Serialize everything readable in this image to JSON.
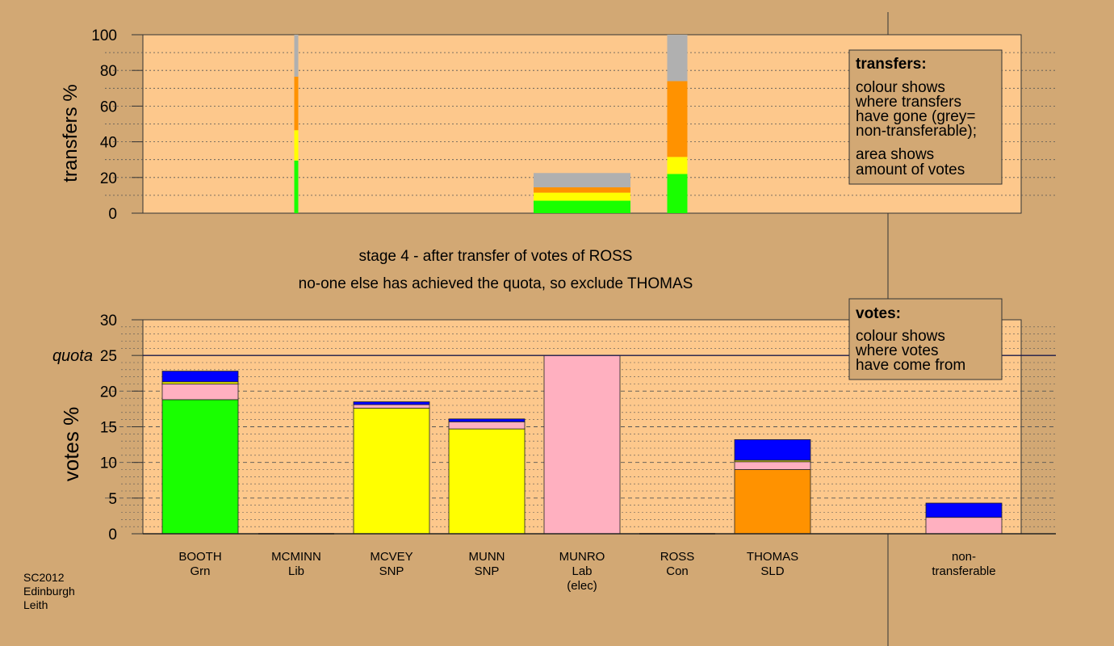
{
  "colors": {
    "background": "#d2a874",
    "plot_bg": "#fdc88c",
    "Grn": "#19ff00",
    "Lib": "#ffff00",
    "SNP": "#ffff00",
    "Lab": "#ffb0c0",
    "SLD": "#ff9200",
    "Con": "#0000ff",
    "nontransferable": "#b0b0b0"
  },
  "stage_text": "stage 4 - after transfer of votes of ROSS",
  "status_text": "no-one else has achieved the quota, so exclude THOMAS",
  "footer": [
    "SC2012",
    "Edinburgh",
    "Leith"
  ],
  "transfers_legend": {
    "title": "transfers:",
    "line1": [
      "colour shows",
      "where transfers",
      "have gone (grey=",
      "non-transferable);"
    ],
    "line2": [
      "area shows",
      "amount of votes"
    ]
  },
  "votes_legend": {
    "title": "votes:",
    "line1": [
      "colour shows",
      "where votes",
      "have come from"
    ]
  },
  "chart_data": [
    {
      "type": "bar",
      "title": "",
      "ylabel": "transfers %",
      "ylim": [
        0,
        100
      ],
      "yticks": [
        0,
        20,
        40,
        60,
        80,
        100
      ],
      "grid": true,
      "legend": "top-right",
      "categories": [
        "BOOTH Grn",
        "MCMINN Lib",
        "MCVEY SNP",
        "MUNN SNP",
        "MUNRO Lab (elec)",
        "ROSS Con",
        "THOMAS SLD"
      ],
      "bars": [
        {
          "category": "MCMINN Lib",
          "segments": [
            {
              "color_key": "Grn",
              "value": 29.5
            },
            {
              "color_key": "SNP",
              "value": 17
            },
            {
              "color_key": "SLD",
              "value": 30
            },
            {
              "color_key": "nontransferable",
              "value": 23.5
            }
          ]
        },
        {
          "category": "MUNRO Lab (elec)",
          "segments": [
            {
              "color_key": "Grn",
              "value": 7
            },
            {
              "color_key": "SNP",
              "value": 4.5
            },
            {
              "color_key": "SLD",
              "value": 3
            },
            {
              "color_key": "nontransferable",
              "value": 8
            }
          ]
        },
        {
          "category": "ROSS Con",
          "segments": [
            {
              "color_key": "Grn",
              "value": 22
            },
            {
              "color_key": "SNP",
              "value": 9.5
            },
            {
              "color_key": "SLD",
              "value": 42.5
            },
            {
              "color_key": "nontransferable",
              "value": 26
            }
          ]
        }
      ]
    },
    {
      "type": "bar",
      "title": "",
      "ylabel": "votes %",
      "ylim": [
        0,
        30
      ],
      "yticks": [
        0,
        5,
        10,
        15,
        20,
        25,
        30
      ],
      "quota": 25,
      "quota_label": "quota",
      "grid": true,
      "legend": "top-right",
      "categories": [
        {
          "name": "BOOTH",
          "party": "Grn",
          "note": ""
        },
        {
          "name": "MCMINN",
          "party": "Lib",
          "note": ""
        },
        {
          "name": "MCVEY",
          "party": "SNP",
          "note": ""
        },
        {
          "name": "MUNN",
          "party": "SNP",
          "note": ""
        },
        {
          "name": "MUNRO",
          "party": "Lab",
          "note": "(elec)"
        },
        {
          "name": "ROSS",
          "party": "Con",
          "note": ""
        },
        {
          "name": "THOMAS",
          "party": "SLD",
          "note": ""
        },
        {
          "name": "non-",
          "party": "transferable",
          "note": ""
        }
      ],
      "bars": [
        {
          "category": "BOOTH",
          "segments": [
            {
              "color_key": "Grn",
              "value": 18.8
            },
            {
              "color_key": "Lab",
              "value": 2.2
            },
            {
              "color_key": "Lib",
              "value": 0.3
            },
            {
              "color_key": "Con",
              "value": 1.5
            }
          ]
        },
        {
          "category": "MCMINN",
          "segments": []
        },
        {
          "category": "MCVEY",
          "segments": [
            {
              "color_key": "SNP",
              "value": 17.6
            },
            {
              "color_key": "Lab",
              "value": 0.5
            },
            {
              "color_key": "Con",
              "value": 0.4
            }
          ]
        },
        {
          "category": "MUNN",
          "segments": [
            {
              "color_key": "SNP",
              "value": 14.7
            },
            {
              "color_key": "Lab",
              "value": 1.0
            },
            {
              "color_key": "Con",
              "value": 0.4
            }
          ]
        },
        {
          "category": "MUNRO",
          "segments": [
            {
              "color_key": "Lab",
              "value": 25.0
            }
          ]
        },
        {
          "category": "ROSS",
          "segments": []
        },
        {
          "category": "THOMAS",
          "segments": [
            {
              "color_key": "SLD",
              "value": 9.0
            },
            {
              "color_key": "Lab",
              "value": 1.1
            },
            {
              "color_key": "Lib",
              "value": 0.2
            },
            {
              "color_key": "Con",
              "value": 2.9
            }
          ]
        },
        {
          "category": "non-",
          "segments": [
            {
              "color_key": "Lab",
              "value": 2.3
            },
            {
              "color_key": "Con",
              "value": 2.0
            }
          ]
        }
      ]
    }
  ]
}
